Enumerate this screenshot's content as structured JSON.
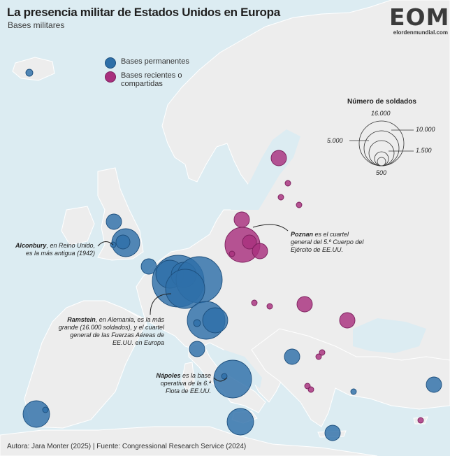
{
  "title": "La presencia militar de Estados Unidos en Europa",
  "subtitle": "Bases militares",
  "logo": {
    "mark": "EOM",
    "url": "elordenmundial.com"
  },
  "colors": {
    "sea": "#dcecf2",
    "land": "#ededed",
    "land_border": "#ffffff",
    "permanent": "#2e6fa8",
    "recent": "#a8307e"
  },
  "legend": {
    "permanent_label": "Bases permanentes",
    "recent_label": "Bases recientes o compartidas"
  },
  "size_legend": {
    "title": "Número de soldados",
    "values": [
      "16.000",
      "10.000",
      "5.000",
      "1.500",
      "500"
    ]
  },
  "annotations": {
    "alconbury": {
      "name": "Alconbury",
      "text": ", en Reino Unido, es la más antigua (1942)"
    },
    "poznan": {
      "name": "Poznan",
      "text": " es el cuartel general del 5.º Cuerpo del Ejército de EE.UU."
    },
    "ramstein": {
      "name": "Ramstein",
      "text": ", en Alemania, es la más grande (16.000 soldados), y el cuartel general de las Fuerzas Aéreas de EE.UU. en Europa"
    },
    "napoles": {
      "name": "Nápoles",
      "text": " es la base operativa de la 6.ª Flota de EE.UU."
    }
  },
  "footer": "Autora: Jara Monter (2025) | Fuente: Congressional Research Service (2024)"
}
